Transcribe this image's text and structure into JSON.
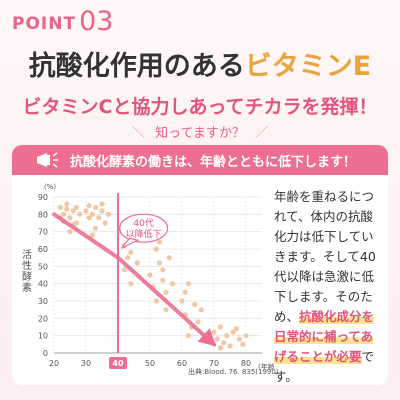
{
  "header": {
    "point_word": "POINT",
    "point_number": "03",
    "title_main": "抗酸化作用のある",
    "title_accent": "ビタミンE",
    "subtitle": "ビタミンCと協力しあってチカラを発揮！",
    "question": "知ってますか？",
    "question_left": "＼",
    "question_right": "／"
  },
  "card": {
    "banner_text": "抗酸化酵素の働きは、年齢とともに低下します！",
    "side_text_plain": "年齢を重ねるにつれて、体内の抗酸化力は低下していきます。そして40代以降は急激に低下します。そのため、",
    "side_text_highlight": "抗酸化成分を日常的に補ってあげることが必要",
    "side_text_tail": "です。",
    "source": "出典:Blood. 76. 835(1990)",
    "colors": {
      "banner": "#ec6f92",
      "accent_pink": "#e3537b",
      "accent_orange": "#e9a43a",
      "highlight": "#fde48a",
      "dots": "#f2c7a5",
      "arrow": "#ec6f92"
    }
  },
  "chart_data": {
    "type": "scatter",
    "ylabel": "活性酵素",
    "y_unit": "(%)",
    "x_unit": "(年齢)",
    "x_ticks": [
      20,
      30,
      40,
      50,
      60,
      70,
      80
    ],
    "y_ticks": [
      0,
      10,
      20,
      30,
      40,
      50,
      60,
      70,
      80,
      90
    ],
    "xlim": [
      20,
      85
    ],
    "ylim": [
      0,
      90
    ],
    "highlight_x": 40,
    "annotation": "40代\n以降低下",
    "annotation_line1": "40代",
    "annotation_line2": "以降低下",
    "trend_line": [
      [
        20,
        80
      ],
      [
        40,
        55
      ],
      [
        70,
        5
      ]
    ],
    "points": [
      [
        22,
        84
      ],
      [
        23,
        80
      ],
      [
        24,
        83
      ],
      [
        25,
        78
      ],
      [
        26,
        82
      ],
      [
        27,
        75
      ],
      [
        24,
        86
      ],
      [
        22,
        78
      ],
      [
        25,
        70
      ],
      [
        26,
        74
      ],
      [
        28,
        80
      ],
      [
        27,
        84
      ],
      [
        23,
        76
      ],
      [
        30,
        82
      ],
      [
        31,
        85
      ],
      [
        32,
        80
      ],
      [
        33,
        84
      ],
      [
        34,
        78
      ],
      [
        35,
        82
      ],
      [
        36,
        75
      ],
      [
        33,
        72
      ],
      [
        31,
        78
      ],
      [
        35,
        86
      ],
      [
        37,
        80
      ],
      [
        32,
        68
      ],
      [
        41,
        70
      ],
      [
        42,
        62
      ],
      [
        43,
        75
      ],
      [
        44,
        58
      ],
      [
        45,
        66
      ],
      [
        46,
        52
      ],
      [
        42,
        48
      ],
      [
        44,
        40
      ],
      [
        47,
        72
      ],
      [
        43,
        55
      ],
      [
        50,
        45
      ],
      [
        51,
        38
      ],
      [
        52,
        60
      ],
      [
        53,
        52
      ],
      [
        54,
        42
      ],
      [
        55,
        35
      ],
      [
        56,
        55
      ],
      [
        52,
        30
      ],
      [
        54,
        48
      ],
      [
        53,
        64
      ],
      [
        57,
        40
      ],
      [
        55,
        25
      ],
      [
        60,
        30
      ],
      [
        61,
        22
      ],
      [
        62,
        40
      ],
      [
        63,
        15
      ],
      [
        64,
        28
      ],
      [
        65,
        18
      ],
      [
        62,
        10
      ],
      [
        66,
        25
      ],
      [
        61,
        35
      ],
      [
        70,
        12
      ],
      [
        71,
        8
      ],
      [
        72,
        15
      ],
      [
        73,
        6
      ],
      [
        74,
        10
      ],
      [
        75,
        4
      ],
      [
        76,
        12
      ],
      [
        72,
        3
      ],
      [
        78,
        8
      ],
      [
        79,
        5
      ],
      [
        80,
        10
      ],
      [
        77,
        14
      ]
    ]
  }
}
